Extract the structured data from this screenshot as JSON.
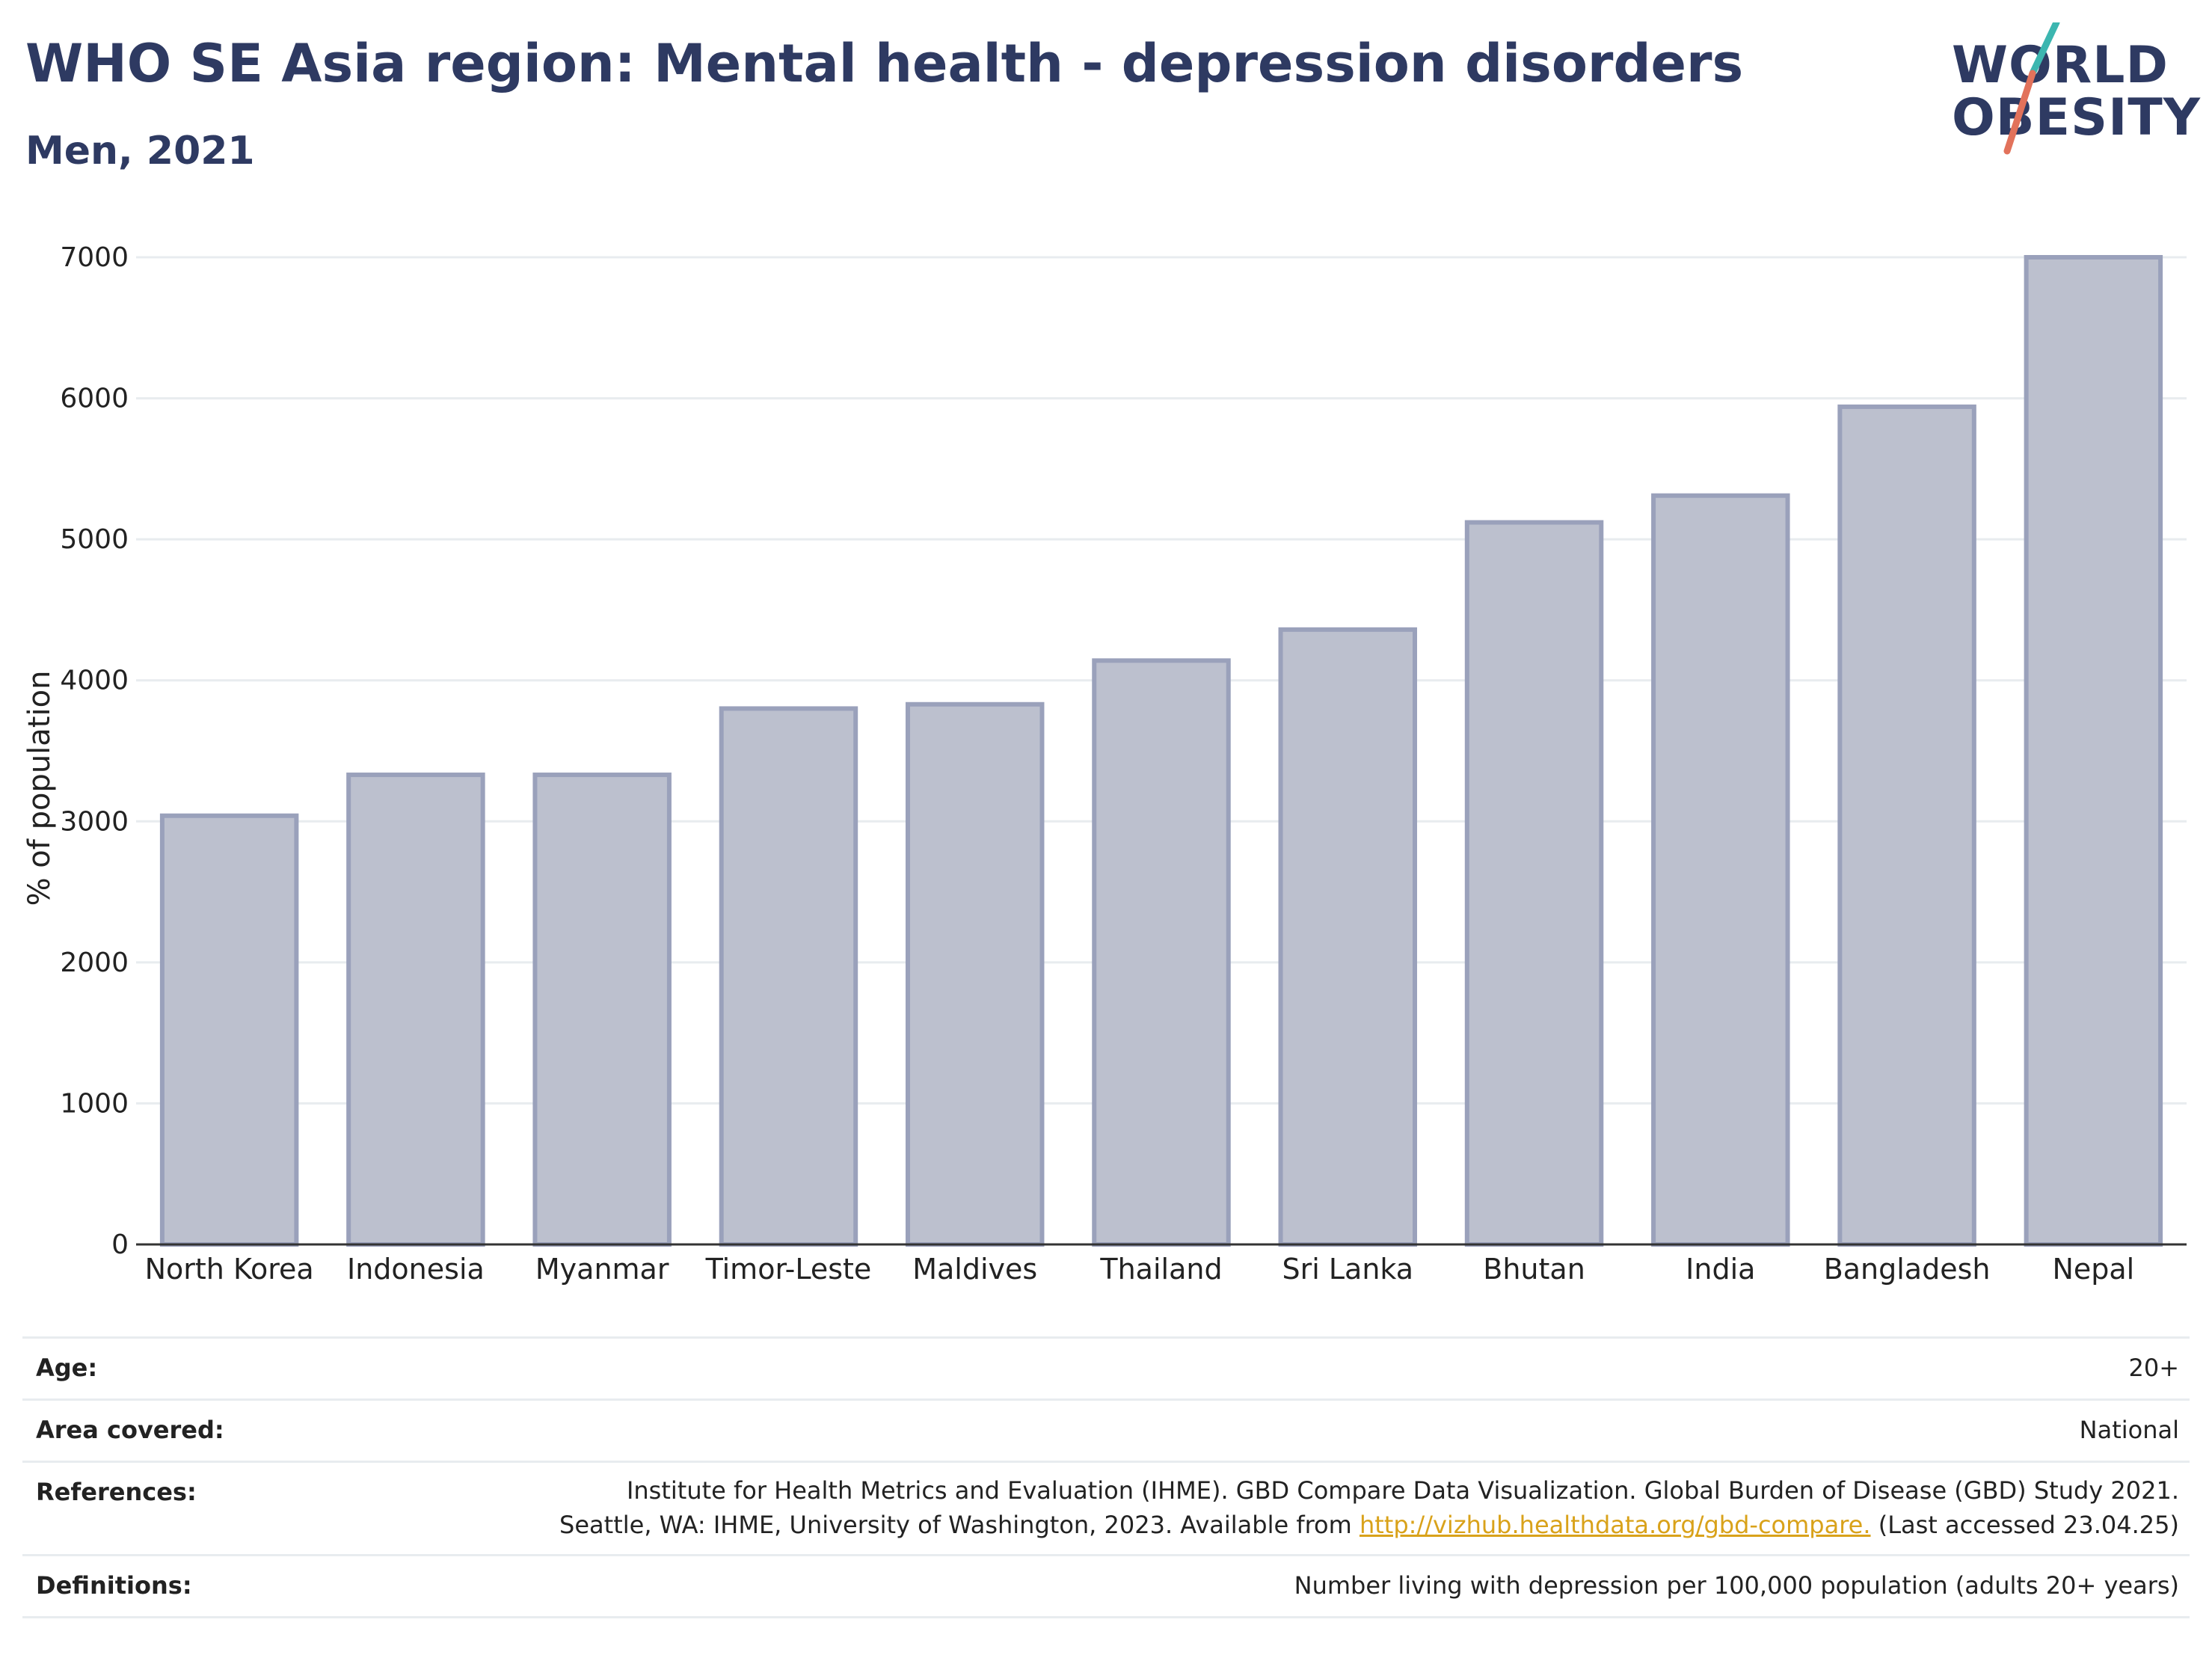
{
  "header": {
    "title": "WHO SE Asia region: Mental health - depression disorders",
    "subtitle": "Men, 2021"
  },
  "logo": {
    "line1": "WORLD",
    "line2": "OBESITY",
    "colors": {
      "text": "#2e3a62",
      "slash_top": "#3cb6b0",
      "slash_bottom": "#e2725b"
    }
  },
  "chart_data": {
    "type": "bar",
    "categories": [
      "North Korea",
      "Indonesia",
      "Myanmar",
      "Timor-Leste",
      "Maldives",
      "Thailand",
      "Sri Lanka",
      "Bhutan",
      "India",
      "Bangladesh",
      "Nepal"
    ],
    "values": [
      3040,
      3330,
      3330,
      3800,
      3830,
      4140,
      4360,
      5120,
      5310,
      5940,
      7000
    ],
    "ylabel": "% of population",
    "xlabel": "",
    "ylim": [
      0,
      7000
    ],
    "yticks": [
      0,
      1000,
      2000,
      3000,
      4000,
      5000,
      6000,
      7000
    ],
    "grid": true,
    "bar_fill": "#bcc0ce",
    "bar_stroke": "#9aa1bb"
  },
  "meta": {
    "age_label": "Age:",
    "age_value": "20+",
    "area_label": "Area covered:",
    "area_value": "National",
    "refs_label": "References:",
    "refs_line1": "Institute for Health Metrics and Evaluation (IHME). GBD Compare Data Visualization. Global Burden of Disease (GBD) Study 2021.",
    "refs_line2_pre": "Seattle, WA: IHME, University of Washington, 2023. Available from ",
    "refs_link": "http://vizhub.healthdata.org/gbd-compare.",
    "refs_line2_post": " (Last accessed 23.04.25)",
    "defs_label": "Definitions:",
    "defs_value": "Number living with depression per 100,000 population (adults 20+ years)"
  }
}
